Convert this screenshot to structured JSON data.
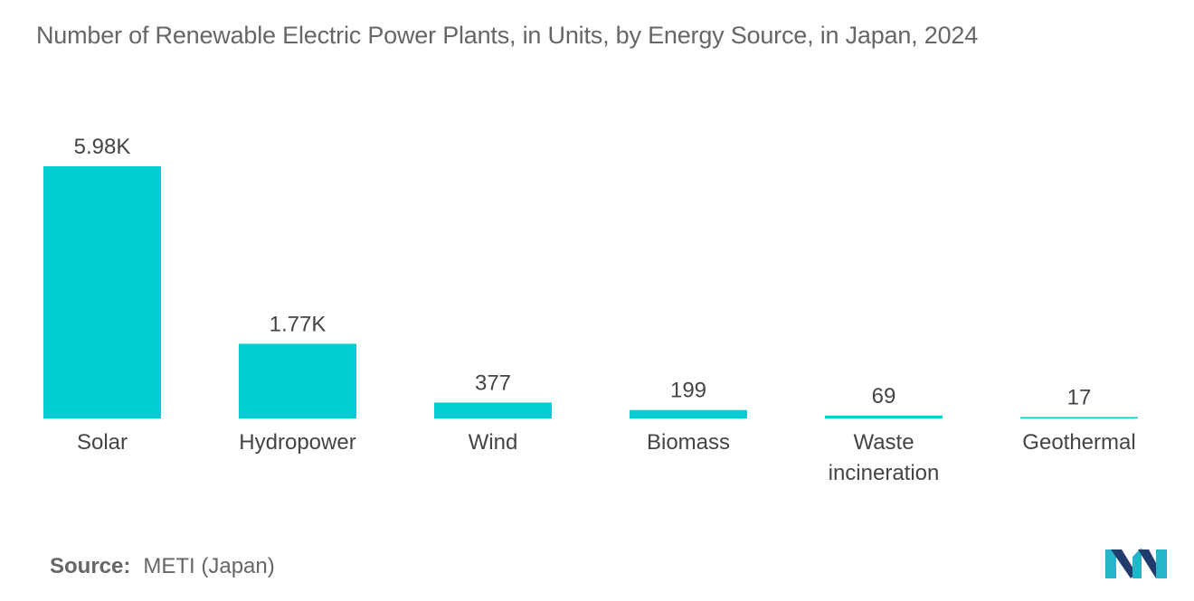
{
  "title": "Number of Renewable Electric Power Plants, in Units, by Energy Source, in Japan, 2024",
  "source": {
    "label": "Source:",
    "value": "METI (Japan)"
  },
  "logo": {
    "icon": "mordor-intelligence-logo-icon",
    "colors": [
      "#1f3c6b",
      "#25b5c9"
    ]
  },
  "chart_data": {
    "type": "bar",
    "title": "Number of Renewable Electric Power Plants, in Units, by Energy Source, in Japan, 2024",
    "xlabel": "",
    "ylabel": "",
    "categories": [
      "Solar",
      "Hydropower",
      "Wind",
      "Biomass",
      "Waste incineration",
      "Geothermal"
    ],
    "category_lines": [
      [
        "Solar"
      ],
      [
        "Hydropower"
      ],
      [
        "Wind"
      ],
      [
        "Biomass"
      ],
      [
        "Waste",
        "incineration"
      ],
      [
        "Geothermal"
      ]
    ],
    "values": [
      5980,
      1770,
      377,
      199,
      69,
      17
    ],
    "value_labels": [
      "5.98K",
      "1.77K",
      "377",
      "199",
      "69",
      "17"
    ],
    "ylim": [
      0,
      5980
    ],
    "grid": false,
    "legend": "none",
    "bar_color": "#00ced1"
  }
}
